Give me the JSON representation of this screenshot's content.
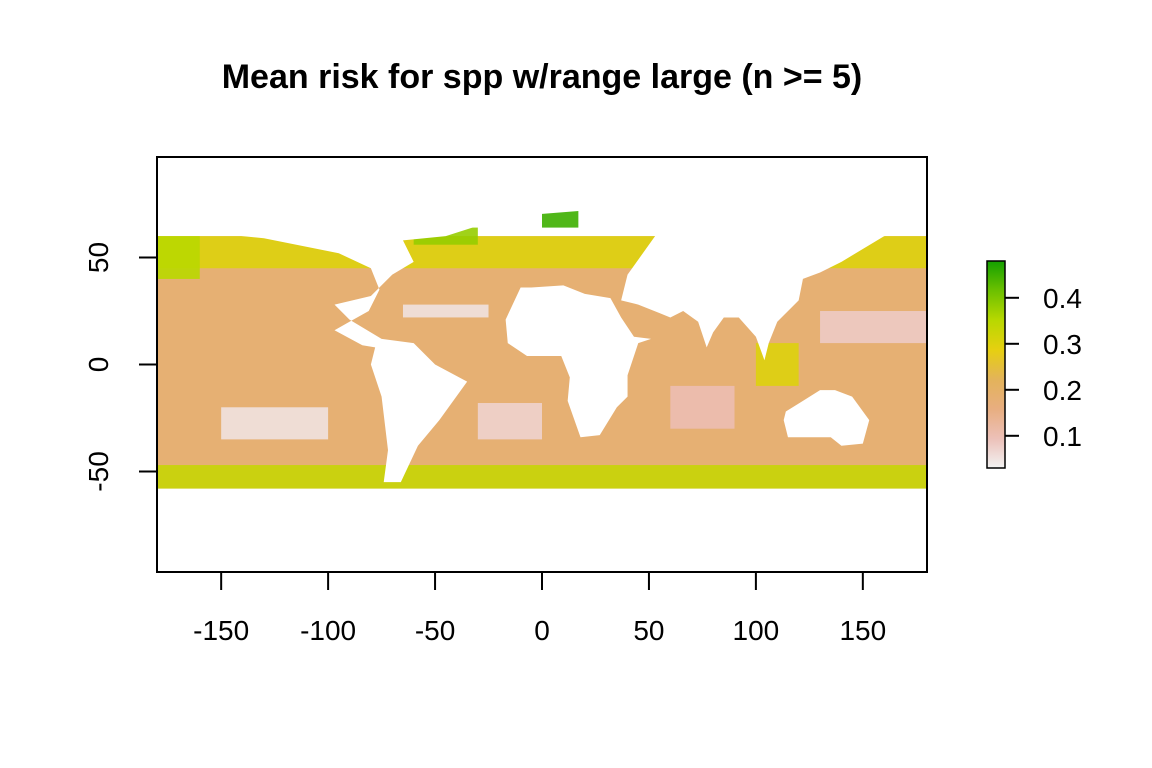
{
  "chart_data": {
    "type": "heatmap",
    "title": "Mean risk for spp w/range large (n >= 5)",
    "xlabel": "",
    "ylabel": "",
    "xlim": [
      -180,
      180
    ],
    "ylim": [
      -97,
      97
    ],
    "x_ticks": [
      -150,
      -100,
      -50,
      0,
      50,
      100,
      150
    ],
    "y_ticks": [
      50,
      0,
      -50
    ],
    "x_tick_labels": [
      "-150",
      "-100",
      "-50",
      "0",
      "50",
      "100",
      "150"
    ],
    "y_tick_labels": [
      "50",
      "0",
      "-50"
    ],
    "legend": {
      "position": "right",
      "min": 0.03,
      "max": 0.48,
      "ticks": [
        0.1,
        0.2,
        0.3,
        0.4
      ],
      "tick_labels": [
        "0.1",
        "0.2",
        "0.3",
        "0.4"
      ],
      "colors": [
        "#f2f2f2",
        "#ecc0b8",
        "#e8ae80",
        "#e3b35a",
        "#e6d010",
        "#b8d800",
        "#6cc000",
        "#14a000"
      ]
    },
    "value_description": "mean risk",
    "ocean_base_value": 0.18,
    "regions": [
      {
        "lon": [
          -180,
          180
        ],
        "lat": [
          45,
          60
        ],
        "value": 0.3
      },
      {
        "lon": [
          -180,
          180
        ],
        "lat": [
          -58,
          -47
        ],
        "value": 0.33
      },
      {
        "lon": [
          -180,
          -160
        ],
        "lat": [
          40,
          60
        ],
        "value": 0.35
      },
      {
        "lon": [
          -60,
          -30
        ],
        "lat": [
          56,
          64
        ],
        "value": 0.38
      },
      {
        "lon": [
          0,
          17
        ],
        "lat": [
          64,
          72
        ],
        "value": 0.45
      },
      {
        "lon": [
          -65,
          -25
        ],
        "lat": [
          22,
          28
        ],
        "value": 0.05
      },
      {
        "lon": [
          -150,
          -100
        ],
        "lat": [
          -35,
          -20
        ],
        "value": 0.05
      },
      {
        "lon": [
          -30,
          0
        ],
        "lat": [
          -35,
          -18
        ],
        "value": 0.07
      },
      {
        "lon": [
          60,
          90
        ],
        "lat": [
          -30,
          -10
        ],
        "value": 0.1
      },
      {
        "lon": [
          130,
          180
        ],
        "lat": [
          10,
          25
        ],
        "value": 0.08
      },
      {
        "lon": [
          100,
          120
        ],
        "lat": [
          -10,
          10
        ],
        "value": 0.3
      }
    ]
  }
}
